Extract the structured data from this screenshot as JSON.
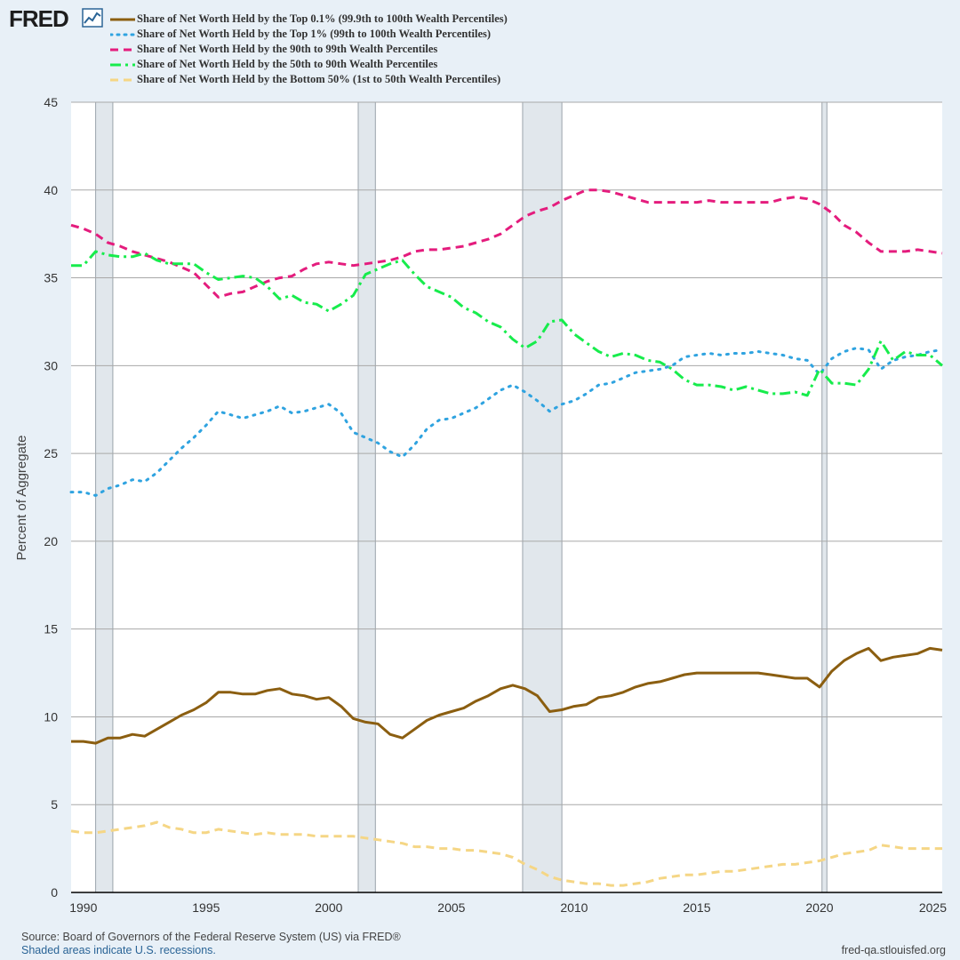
{
  "brand": {
    "logo_text": "FRED",
    "logo_icon": "trend-chart-icon"
  },
  "colors": {
    "background": "#e8f0f7",
    "plot_background": "#ffffff",
    "grid": "#a8a8a8",
    "recession": "#e1e7ec",
    "top01": "#8b5e10",
    "top1": "#2fa3e0",
    "p90_99": "#e41c7d",
    "p50_90": "#17ec4c",
    "bottom50": "#f5d685"
  },
  "legend": [
    {
      "label": "Share of Net Worth Held by the Top 0.1% (99.9th to 100th Wealth Percentiles)",
      "color": "#8b5e10",
      "style": "solid"
    },
    {
      "label": "Share of Net Worth Held by the Top 1% (99th to 100th Wealth Percentiles)",
      "color": "#2fa3e0",
      "style": "dotted"
    },
    {
      "label": "Share of Net Worth Held by the 90th to 99th Wealth Percentiles",
      "color": "#e41c7d",
      "style": "dashed"
    },
    {
      "label": "Share of Net Worth Held by the 50th to 90th Wealth Percentiles",
      "color": "#17ec4c",
      "style": "dashdot"
    },
    {
      "label": "Share of Net Worth Held by the Bottom 50% (1st to 50th Wealth Percentiles)",
      "color": "#f5d685",
      "style": "dashed"
    }
  ],
  "chart_data": {
    "type": "line",
    "title": "",
    "xlabel": "",
    "ylabel": "Percent of Aggregate",
    "xlim": [
      1989.5,
      2025.0
    ],
    "ylim": [
      0,
      45
    ],
    "x_ticks": [
      "1990",
      "1995",
      "2000",
      "2005",
      "2010",
      "2015",
      "2020",
      "2025"
    ],
    "y_ticks": [
      "0",
      "5",
      "10",
      "15",
      "20",
      "25",
      "30",
      "35",
      "40",
      "45"
    ],
    "grid": true,
    "legend_position": "top-left",
    "recessions": [
      [
        1990.5,
        1991.2
      ],
      [
        2001.2,
        2001.9
      ],
      [
        2007.9,
        2009.5
      ],
      [
        2020.1,
        2020.3
      ]
    ],
    "series": [
      {
        "name": "Share of Net Worth Held by the Top 0.1% (99.9th to 100th Wealth Percentiles)",
        "x": [
          1989.5,
          1990.0,
          1990.5,
          1991.0,
          1991.5,
          1992.0,
          1992.5,
          1993.0,
          1993.5,
          1994.0,
          1994.5,
          1995.0,
          1995.5,
          1996.0,
          1996.5,
          1997.0,
          1997.5,
          1998.0,
          1998.5,
          1999.0,
          1999.5,
          2000.0,
          2000.5,
          2001.0,
          2001.5,
          2002.0,
          2002.5,
          2003.0,
          2003.5,
          2004.0,
          2004.5,
          2005.0,
          2005.5,
          2006.0,
          2006.5,
          2007.0,
          2007.5,
          2008.0,
          2008.5,
          2009.0,
          2009.5,
          2010.0,
          2010.5,
          2011.0,
          2011.5,
          2012.0,
          2012.5,
          2013.0,
          2013.5,
          2014.0,
          2014.5,
          2015.0,
          2015.5,
          2016.0,
          2016.5,
          2017.0,
          2017.5,
          2018.0,
          2018.5,
          2019.0,
          2019.5,
          2020.0,
          2020.5,
          2021.0,
          2021.5,
          2022.0,
          2022.5,
          2023.0,
          2023.5,
          2024.0,
          2024.5,
          2025.0
        ],
        "y": [
          8.6,
          8.6,
          8.5,
          8.8,
          8.8,
          9.0,
          8.9,
          9.3,
          9.7,
          10.1,
          10.4,
          10.8,
          11.4,
          11.4,
          11.3,
          11.3,
          11.5,
          11.6,
          11.3,
          11.2,
          11.0,
          11.1,
          10.6,
          9.9,
          9.7,
          9.6,
          9.0,
          8.8,
          9.3,
          9.8,
          10.1,
          10.3,
          10.5,
          10.9,
          11.2,
          11.6,
          11.8,
          11.6,
          11.2,
          10.3,
          10.4,
          10.6,
          10.7,
          11.1,
          11.2,
          11.4,
          11.7,
          11.9,
          12.0,
          12.2,
          12.4,
          12.5,
          12.5,
          12.5,
          12.5,
          12.5,
          12.5,
          12.4,
          12.3,
          12.2,
          12.2,
          11.7,
          12.6,
          13.2,
          13.6,
          13.9,
          13.2,
          13.4,
          13.5,
          13.6,
          13.9,
          13.8
        ]
      },
      {
        "name": "Share of Net Worth Held by the Top 1% (99th to 100th Wealth Percentiles)",
        "x": [
          1989.5,
          1990.0,
          1990.5,
          1991.0,
          1991.5,
          1992.0,
          1992.5,
          1993.0,
          1993.5,
          1994.0,
          1994.5,
          1995.0,
          1995.5,
          1996.0,
          1996.5,
          1997.0,
          1997.5,
          1998.0,
          1998.5,
          1999.0,
          1999.5,
          2000.0,
          2000.5,
          2001.0,
          2001.5,
          2002.0,
          2002.5,
          2003.0,
          2003.5,
          2004.0,
          2004.5,
          2005.0,
          2005.5,
          2006.0,
          2006.5,
          2007.0,
          2007.5,
          2008.0,
          2008.5,
          2009.0,
          2009.5,
          2010.0,
          2010.5,
          2011.0,
          2011.5,
          2012.0,
          2012.5,
          2013.0,
          2013.5,
          2014.0,
          2014.5,
          2015.0,
          2015.5,
          2016.0,
          2016.5,
          2017.0,
          2017.5,
          2018.0,
          2018.5,
          2019.0,
          2019.5,
          2020.0,
          2020.5,
          2021.0,
          2021.5,
          2022.0,
          2022.5,
          2023.0,
          2023.5,
          2024.0,
          2024.5,
          2025.0
        ],
        "y": [
          22.8,
          22.8,
          22.6,
          23.0,
          23.2,
          23.5,
          23.4,
          23.9,
          24.6,
          25.3,
          25.9,
          26.6,
          27.4,
          27.2,
          27.0,
          27.2,
          27.4,
          27.7,
          27.3,
          27.4,
          27.6,
          27.8,
          27.3,
          26.2,
          25.9,
          25.6,
          25.1,
          24.8,
          25.5,
          26.4,
          26.9,
          27.0,
          27.3,
          27.6,
          28.1,
          28.6,
          28.9,
          28.5,
          28.0,
          27.4,
          27.8,
          28.0,
          28.4,
          28.9,
          29.0,
          29.3,
          29.6,
          29.7,
          29.8,
          30.0,
          30.5,
          30.6,
          30.7,
          30.6,
          30.7,
          30.7,
          30.8,
          30.7,
          30.6,
          30.4,
          30.3,
          29.5,
          30.4,
          30.8,
          31.0,
          30.9,
          29.8,
          30.3,
          30.5,
          30.6,
          30.8,
          30.9
        ]
      },
      {
        "name": "Share of Net Worth Held by the 90th to 99th Wealth Percentiles",
        "x": [
          1989.5,
          1990.0,
          1990.5,
          1991.0,
          1991.5,
          1992.0,
          1992.5,
          1993.0,
          1993.5,
          1994.0,
          1994.5,
          1995.0,
          1995.5,
          1996.0,
          1996.5,
          1997.0,
          1997.5,
          1998.0,
          1998.5,
          1999.0,
          1999.5,
          2000.0,
          2000.5,
          2001.0,
          2001.5,
          2002.0,
          2002.5,
          2003.0,
          2003.5,
          2004.0,
          2004.5,
          2005.0,
          2005.5,
          2006.0,
          2006.5,
          2007.0,
          2007.5,
          2008.0,
          2008.5,
          2009.0,
          2009.5,
          2010.0,
          2010.5,
          2011.0,
          2011.5,
          2012.0,
          2012.5,
          2013.0,
          2013.5,
          2014.0,
          2014.5,
          2015.0,
          2015.5,
          2016.0,
          2016.5,
          2017.0,
          2017.5,
          2018.0,
          2018.5,
          2019.0,
          2019.5,
          2020.0,
          2020.5,
          2021.0,
          2021.5,
          2022.0,
          2022.5,
          2023.0,
          2023.5,
          2024.0,
          2024.5,
          2025.0
        ],
        "y": [
          38.0,
          37.8,
          37.5,
          37.0,
          36.8,
          36.5,
          36.3,
          36.1,
          35.9,
          35.6,
          35.3,
          34.6,
          33.9,
          34.1,
          34.2,
          34.5,
          34.8,
          35.0,
          35.1,
          35.5,
          35.8,
          35.9,
          35.8,
          35.7,
          35.8,
          35.9,
          36.0,
          36.2,
          36.5,
          36.6,
          36.6,
          36.7,
          36.8,
          37.0,
          37.2,
          37.5,
          38.0,
          38.5,
          38.8,
          39.0,
          39.4,
          39.7,
          40.0,
          40.0,
          39.9,
          39.7,
          39.5,
          39.3,
          39.3,
          39.3,
          39.3,
          39.3,
          39.4,
          39.3,
          39.3,
          39.3,
          39.3,
          39.3,
          39.5,
          39.6,
          39.5,
          39.2,
          38.7,
          38.0,
          37.6,
          37.0,
          36.5,
          36.5,
          36.5,
          36.6,
          36.5,
          36.4
        ]
      },
      {
        "name": "Share of Net Worth Held by the 50th to 90th Wealth Percentiles",
        "x": [
          1989.5,
          1990.0,
          1990.5,
          1991.0,
          1991.5,
          1992.0,
          1992.5,
          1993.0,
          1993.5,
          1994.0,
          1994.5,
          1995.0,
          1995.5,
          1996.0,
          1996.5,
          1997.0,
          1997.5,
          1998.0,
          1998.5,
          1999.0,
          1999.5,
          2000.0,
          2000.5,
          2001.0,
          2001.5,
          2002.0,
          2002.5,
          2003.0,
          2003.5,
          2004.0,
          2004.5,
          2005.0,
          2005.5,
          2006.0,
          2006.5,
          2007.0,
          2007.5,
          2008.0,
          2008.5,
          2009.0,
          2009.5,
          2010.0,
          2010.5,
          2011.0,
          2011.5,
          2012.0,
          2012.5,
          2013.0,
          2013.5,
          2014.0,
          2014.5,
          2015.0,
          2015.5,
          2016.0,
          2016.5,
          2017.0,
          2017.5,
          2018.0,
          2018.5,
          2019.0,
          2019.5,
          2020.0,
          2020.5,
          2021.0,
          2021.5,
          2022.0,
          2022.5,
          2023.0,
          2023.5,
          2024.0,
          2024.5,
          2025.0
        ],
        "y": [
          35.7,
          35.7,
          36.5,
          36.3,
          36.2,
          36.2,
          36.4,
          36.0,
          35.8,
          35.8,
          35.8,
          35.3,
          34.9,
          35.0,
          35.1,
          35.0,
          34.5,
          33.8,
          34.0,
          33.6,
          33.5,
          33.1,
          33.5,
          34.0,
          35.2,
          35.5,
          35.8,
          36.0,
          35.2,
          34.5,
          34.2,
          33.9,
          33.3,
          33.0,
          32.5,
          32.2,
          31.5,
          31.0,
          31.4,
          32.5,
          32.6,
          31.8,
          31.3,
          30.8,
          30.5,
          30.7,
          30.6,
          30.3,
          30.2,
          29.8,
          29.2,
          28.9,
          28.9,
          28.8,
          28.6,
          28.8,
          28.6,
          28.4,
          28.4,
          28.5,
          28.3,
          29.8,
          29.0,
          29.0,
          28.9,
          29.8,
          31.4,
          30.3,
          30.8,
          30.6,
          30.6,
          30.0
        ]
      },
      {
        "name": "Share of Net Worth Held by the Bottom 50% (1st to 50th Wealth Percentiles)",
        "x": [
          1989.5,
          1990.0,
          1990.5,
          1991.0,
          1991.5,
          1992.0,
          1992.5,
          1993.0,
          1993.5,
          1994.0,
          1994.5,
          1995.0,
          1995.5,
          1996.0,
          1996.5,
          1997.0,
          1997.5,
          1998.0,
          1998.5,
          1999.0,
          1999.5,
          2000.0,
          2000.5,
          2001.0,
          2001.5,
          2002.0,
          2002.5,
          2003.0,
          2003.5,
          2004.0,
          2004.5,
          2005.0,
          2005.5,
          2006.0,
          2006.5,
          2007.0,
          2007.5,
          2008.0,
          2008.5,
          2009.0,
          2009.5,
          2010.0,
          2010.5,
          2011.0,
          2011.5,
          2012.0,
          2012.5,
          2013.0,
          2013.5,
          2014.0,
          2014.5,
          2015.0,
          2015.5,
          2016.0,
          2016.5,
          2017.0,
          2017.5,
          2018.0,
          2018.5,
          2019.0,
          2019.5,
          2020.0,
          2020.5,
          2021.0,
          2021.5,
          2022.0,
          2022.5,
          2023.0,
          2023.5,
          2024.0,
          2024.5,
          2025.0
        ],
        "y": [
          3.5,
          3.4,
          3.4,
          3.5,
          3.6,
          3.7,
          3.8,
          4.0,
          3.7,
          3.6,
          3.4,
          3.4,
          3.6,
          3.5,
          3.4,
          3.3,
          3.4,
          3.3,
          3.3,
          3.3,
          3.2,
          3.2,
          3.2,
          3.2,
          3.1,
          3.0,
          2.9,
          2.8,
          2.6,
          2.6,
          2.5,
          2.5,
          2.4,
          2.4,
          2.3,
          2.2,
          2.0,
          1.6,
          1.3,
          0.9,
          0.7,
          0.6,
          0.5,
          0.5,
          0.4,
          0.4,
          0.5,
          0.6,
          0.8,
          0.9,
          1.0,
          1.0,
          1.1,
          1.2,
          1.2,
          1.3,
          1.4,
          1.5,
          1.6,
          1.6,
          1.7,
          1.8,
          2.0,
          2.2,
          2.3,
          2.4,
          2.7,
          2.6,
          2.5,
          2.5,
          2.5,
          2.5
        ]
      }
    ]
  },
  "footer": {
    "source": "Source: Board of Governors of the Federal Reserve System (US) via FRED®",
    "note": "Shaded areas indicate U.S. recessions.",
    "url": "fred-qa.stlouisfed.org"
  }
}
